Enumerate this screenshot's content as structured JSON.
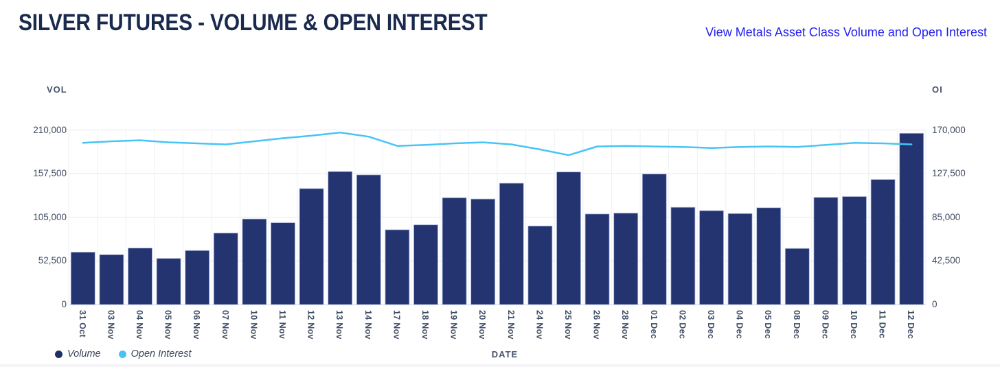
{
  "header": {
    "title": "SILVER FUTURES - VOLUME & OPEN INTEREST",
    "link": "View Metals Asset Class Volume and Open Interest"
  },
  "colors": {
    "title": "#1a2a4d",
    "link": "#2220f2",
    "bar": "#233471",
    "bar_border": "#aeb9dc",
    "line": "#47c4f5",
    "grid": "#e9e9ee",
    "grid_vertical": "#eef0f4",
    "baseline": "#d9dade",
    "axis_text": "#3e4d63",
    "legend_volume_dot": "#1e2f66",
    "legend_oi_dot": "#47c4f5"
  },
  "chart_data": {
    "type": "bar",
    "title": "SILVER FUTURES - VOLUME & OPEN INTEREST",
    "xlabel": "DATE",
    "grid": true,
    "legend_position": "bottom-left",
    "categories": [
      "31 Oct",
      "03 Nov",
      "04 Nov",
      "05 Nov",
      "06 Nov",
      "07 Nov",
      "10 Nov",
      "11 Nov",
      "12 Nov",
      "13 Nov",
      "14 Nov",
      "17 Nov",
      "18 Nov",
      "19 Nov",
      "20 Nov",
      "21 Nov",
      "24 Nov",
      "25 Nov",
      "26 Nov",
      "28 Nov",
      "01 Dec",
      "02 Dec",
      "03 Dec",
      "04 Dec",
      "05 Dec",
      "08 Dec",
      "09 Dec",
      "10 Dec",
      "11 Dec",
      "12 Dec"
    ],
    "series": [
      {
        "name": "Volume",
        "type": "bar",
        "axis": "left",
        "values": [
          63000,
          60000,
          68000,
          55500,
          65000,
          86000,
          103000,
          98500,
          139500,
          160000,
          156000,
          90000,
          96000,
          128500,
          127000,
          146000,
          94500,
          159500,
          109000,
          110000,
          157000,
          117000,
          113000,
          109500,
          116500,
          67500,
          129000,
          130000,
          150500,
          206000
        ]
      },
      {
        "name": "Open Interest",
        "type": "line",
        "axis": "right",
        "values": [
          157500,
          159000,
          160000,
          158000,
          157000,
          156000,
          159000,
          162000,
          164500,
          167500,
          163500,
          154500,
          155500,
          157000,
          158000,
          156000,
          151000,
          145500,
          154000,
          154500,
          154000,
          153500,
          152500,
          153500,
          154000,
          153500,
          155500,
          157500,
          157000,
          156000
        ]
      }
    ],
    "left_axis": {
      "label": "VOL",
      "range": [
        0,
        210000
      ],
      "ticks": [
        "0",
        "52,500",
        "105,000",
        "157,500",
        "210,000"
      ]
    },
    "right_axis": {
      "label": "OI",
      "range": [
        0,
        170000
      ],
      "ticks": [
        "0",
        "42,500",
        "85,000",
        "127,500",
        "170,000"
      ]
    },
    "legend": [
      {
        "label": "Volume",
        "color": "#1e2f66"
      },
      {
        "label": "Open Interest",
        "color": "#47c4f5"
      }
    ]
  }
}
